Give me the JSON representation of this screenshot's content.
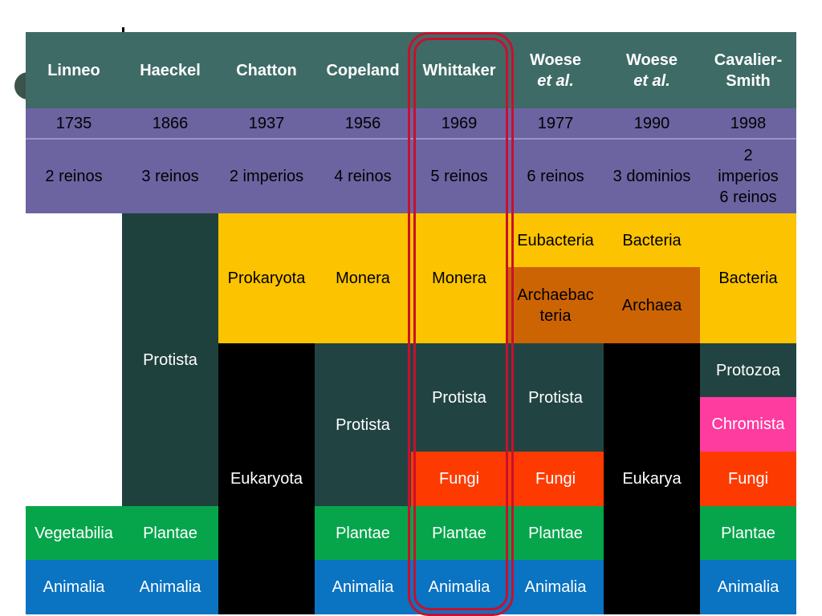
{
  "header": {
    "linneo": "Linneo",
    "haeckel": "Haeckel",
    "chatton": "Chatton",
    "copeland": "Copeland",
    "whittaker": "Whittaker",
    "woese1": "Woese",
    "woese1_sub": "et al.",
    "woese2": "Woese",
    "woese2_sub": "et al.",
    "cavalier": "Cavalier-Smith"
  },
  "years": [
    "1735",
    "1866",
    "1937",
    "1956",
    "1969",
    "1977",
    "1990",
    "1998"
  ],
  "groupings": [
    "2 reinos",
    "3 reinos",
    "2 imperios",
    "4 reinos",
    "5 reinos",
    "6 reinos",
    "3 dominios",
    "2 imperios 6 reinos"
  ],
  "taxa": {
    "haeckel_protista": "Protista",
    "chatton_prokaryota": "Prokaryota",
    "copeland_monera": "Monera",
    "whittaker_monera": "Monera",
    "woese77_eubacteria": "Eubacteria",
    "woese90_bacteria": "Bacteria",
    "cavalier_bacteria": "Bacteria",
    "woese77_archaebacteria": "Archaebacteria",
    "woese90_archaea": "Archaea",
    "chatton_eukaryota": "Eukaryota",
    "copeland_protista": "Protista",
    "whittaker_protista": "Protista",
    "woese77_protista": "Protista",
    "woese90_eukarya": "Eukarya",
    "cavalier_protozoa": "Protozoa",
    "cavalier_chromista": "Chromista",
    "whittaker_fungi": "Fungi",
    "woese77_fungi": "Fungi",
    "cavalier_fungi": "Fungi",
    "linneo_vegetabilia": "Vegetabilia",
    "haeckel_plantae": "Plantae",
    "copeland_plantae": "Plantae",
    "whittaker_plantae": "Plantae",
    "woese77_plantae": "Plantae",
    "cavalier_plantae": "Plantae",
    "linneo_animalia": "Animalia",
    "haeckel_animalia": "Animalia",
    "copeland_animalia": "Animalia",
    "whittaker_animalia": "Animalia",
    "woese77_animalia": "Animalia",
    "cavalier_animalia": "Animalia"
  },
  "colors": {
    "header": "#3e6b66",
    "purple": "#6b64a1",
    "protista_dark": "#1f413e",
    "eukaryota_black": "#000000",
    "monera_yellow": "#fcc300",
    "archaea_orange": "#cd6404",
    "fungi_red": "#fd3b00",
    "chromista_pink": "#fe3b9f",
    "plantae_green": "#06a54b",
    "animalia_blue": "#0a73c2",
    "highlight": "#c8102e"
  }
}
